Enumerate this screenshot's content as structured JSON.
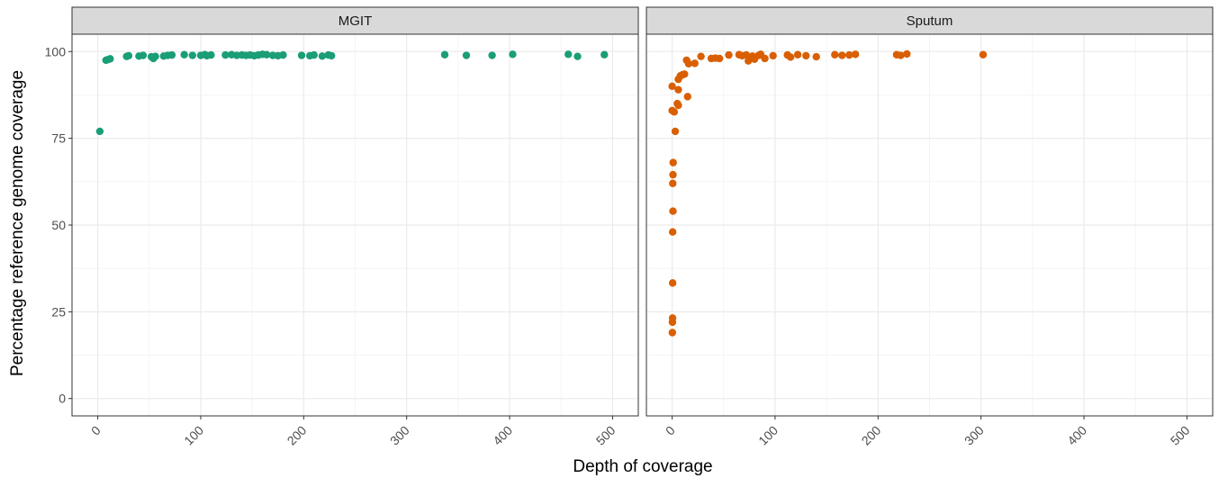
{
  "chart_data": {
    "type": "scatter",
    "xlabel": "Depth of coverage",
    "ylabel": "Percentage reference genome coverage",
    "xlim": [
      -25,
      525
    ],
    "ylim": [
      -5,
      105
    ],
    "x_ticks": [
      0,
      100,
      200,
      300,
      400,
      500
    ],
    "y_ticks": [
      0,
      25,
      50,
      75,
      100
    ],
    "grid": true,
    "legend": "none",
    "panels": [
      {
        "name": "MGIT",
        "color": "#1b9e77",
        "points": [
          [
            2,
            77
          ],
          [
            8,
            97.5
          ],
          [
            10,
            97.7
          ],
          [
            12,
            97.9
          ],
          [
            28,
            98.6
          ],
          [
            30,
            98.8
          ],
          [
            40,
            98.7
          ],
          [
            44,
            98.9
          ],
          [
            52,
            98.5
          ],
          [
            54,
            98.0
          ],
          [
            56,
            98.6
          ],
          [
            64,
            98.7
          ],
          [
            68,
            98.9
          ],
          [
            72,
            99.0
          ],
          [
            84,
            99.1
          ],
          [
            92,
            98.9
          ],
          [
            100,
            98.9
          ],
          [
            104,
            99.1
          ],
          [
            106,
            98.8
          ],
          [
            110,
            99.0
          ],
          [
            124,
            99.0
          ],
          [
            130,
            99.1
          ],
          [
            135,
            98.9
          ],
          [
            140,
            99.0
          ],
          [
            144,
            98.9
          ],
          [
            148,
            99.0
          ],
          [
            152,
            98.8
          ],
          [
            156,
            99.0
          ],
          [
            160,
            99.2
          ],
          [
            164,
            99.1
          ],
          [
            170,
            98.9
          ],
          [
            175,
            98.8
          ],
          [
            180,
            99.0
          ],
          [
            198,
            98.9
          ],
          [
            206,
            98.8
          ],
          [
            210,
            99.0
          ],
          [
            218,
            98.7
          ],
          [
            224,
            99.0
          ],
          [
            227,
            98.8
          ],
          [
            337,
            99.1
          ],
          [
            358,
            98.9
          ],
          [
            383,
            98.9
          ],
          [
            403,
            99.2
          ],
          [
            457,
            99.2
          ],
          [
            466,
            98.6
          ],
          [
            492,
            99.1
          ]
        ]
      },
      {
        "name": "Sputum",
        "color": "#d95f02",
        "points": [
          [
            0.2,
            19
          ],
          [
            0.3,
            22
          ],
          [
            0.4,
            23.2
          ],
          [
            0.5,
            33.3
          ],
          [
            0.5,
            48
          ],
          [
            0.8,
            54
          ],
          [
            0.6,
            62
          ],
          [
            0.8,
            64.5
          ],
          [
            1.0,
            68
          ],
          [
            3,
            77
          ],
          [
            0,
            83
          ],
          [
            2,
            82.6
          ],
          [
            0,
            90
          ],
          [
            5,
            85
          ],
          [
            6,
            84.5
          ],
          [
            6,
            89
          ],
          [
            6,
            92
          ],
          [
            8,
            93
          ],
          [
            10,
            93.3
          ],
          [
            12,
            93.5
          ],
          [
            14,
            97.5
          ],
          [
            16,
            96.5
          ],
          [
            15,
            87
          ],
          [
            22,
            96.6
          ],
          [
            28,
            98.6
          ],
          [
            38,
            98.0
          ],
          [
            42,
            98.1
          ],
          [
            46,
            98.0
          ],
          [
            55,
            99.0
          ],
          [
            65,
            99.1
          ],
          [
            68,
            98.8
          ],
          [
            72,
            99.0
          ],
          [
            74,
            97.3
          ],
          [
            78,
            98.7
          ],
          [
            80,
            97.8
          ],
          [
            84,
            98.9
          ],
          [
            86,
            99.2
          ],
          [
            90,
            98.0
          ],
          [
            98,
            98.8
          ],
          [
            112,
            99.0
          ],
          [
            115,
            98.4
          ],
          [
            122,
            99.1
          ],
          [
            130,
            98.8
          ],
          [
            140,
            98.5
          ],
          [
            158,
            99.1
          ],
          [
            165,
            98.9
          ],
          [
            172,
            99.0
          ],
          [
            178,
            99.2
          ],
          [
            218,
            99.1
          ],
          [
            222,
            98.9
          ],
          [
            228,
            99.3
          ],
          [
            302,
            99.1
          ]
        ]
      }
    ]
  }
}
